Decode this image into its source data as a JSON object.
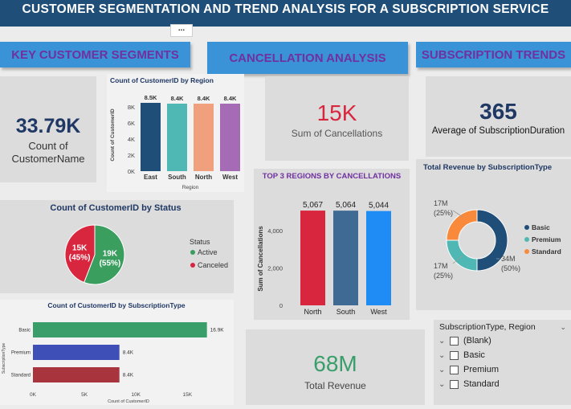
{
  "title": "CUSTOMER SEGMENTATION AND TREND  ANALYSIS FOR A SUBSCRIPTION SERVICE",
  "more_label": "...",
  "headers": {
    "segments": "KEY CUSTOMER SEGMENTS",
    "cancellation": "CANCELLATION ANALYSIS",
    "trends": "SUBSCRIPTION TRENDS"
  },
  "cards": {
    "customers": {
      "value": "33.79K",
      "label": "Count of CustomerName"
    },
    "cancellations": {
      "value": "15K",
      "label": "Sum of Cancellations"
    },
    "duration": {
      "value": "365",
      "label": "Average of SubscriptionDuration"
    },
    "revenue": {
      "value": "68M",
      "label": "Total Revenue"
    }
  },
  "colors": {
    "header_bg": "#3a93d6",
    "header_text": "#7030a0",
    "title_bg": "#1f4e79",
    "revenue_green": "#3a9e6a",
    "cancel_red": "#d9263f"
  },
  "chart_data": [
    {
      "type": "bar",
      "title": "Count of CustomerID by Region",
      "xlabel": "Region",
      "ylabel": "Count of CustomerID",
      "categories": [
        "East",
        "South",
        "North",
        "West"
      ],
      "values": [
        8500,
        8400,
        8400,
        8400
      ],
      "data_labels": [
        "8.5K",
        "8.4K",
        "8.4K",
        "8.4K"
      ],
      "colors": [
        "#1f4e79",
        "#4fb8b4",
        "#f0a07c",
        "#a56bb5"
      ],
      "yticks": [
        "0K",
        "2K",
        "4K",
        "6K",
        "8K"
      ],
      "ylim": [
        0,
        9000
      ]
    },
    {
      "type": "pie",
      "title": "Count of CustomerID by Status",
      "legend_title": "Status",
      "slices": [
        {
          "name": "Active",
          "value": 19000,
          "label": "19K",
          "pct": "(55%)",
          "color": "#3a9e5f"
        },
        {
          "name": "Canceled",
          "value": 15000,
          "label": "15K",
          "pct": "(45%)",
          "color": "#d9263f"
        }
      ]
    },
    {
      "type": "bar",
      "orientation": "horizontal",
      "title": "Count of CustomerID by SubscriptionType",
      "xlabel": "Count of CustomerID",
      "ylabel": "SubscriptionType",
      "categories": [
        "Basic",
        "Premium",
        "Standard"
      ],
      "values": [
        16900,
        8400,
        8400
      ],
      "data_labels": [
        "16.9K",
        "8.4K",
        "8.4K"
      ],
      "colors": [
        "#3a9e6a",
        "#3f4fb8",
        "#a8343d"
      ],
      "xticks": [
        "0K",
        "5K",
        "10K",
        "15K"
      ],
      "xlim": [
        0,
        19500
      ]
    },
    {
      "type": "bar",
      "title": "TOP 3 REGIONS BY CANCELLATIONS",
      "ylabel": "Sum of Cancellations",
      "categories": [
        "North",
        "South",
        "West"
      ],
      "values": [
        5067,
        5064,
        5044
      ],
      "data_labels": [
        "5,067",
        "5,064",
        "5,044"
      ],
      "colors": [
        "#d9263f",
        "#3f6a94",
        "#1f8cf5"
      ],
      "yticks": [
        "0",
        "2,000",
        "4,000"
      ],
      "ylim": [
        0,
        5500
      ]
    },
    {
      "type": "pie",
      "variant": "donut",
      "title": "Total Revenue by SubscriptionType",
      "slices": [
        {
          "name": "Basic",
          "value": 34,
          "label": "34M",
          "pct": "(50%)",
          "color": "#1f4e79"
        },
        {
          "name": "Premium",
          "value": 17,
          "label": "17M",
          "pct": "(25%)",
          "color": "#4fb8b4"
        },
        {
          "name": "Standard",
          "value": 17,
          "label": "17M",
          "pct": "(25%)",
          "color": "#f98a3c"
        }
      ]
    }
  ],
  "slicer": {
    "title": "SubscriptionType, Region",
    "items": [
      "(Blank)",
      "Basic",
      "Premium",
      "Standard"
    ]
  }
}
